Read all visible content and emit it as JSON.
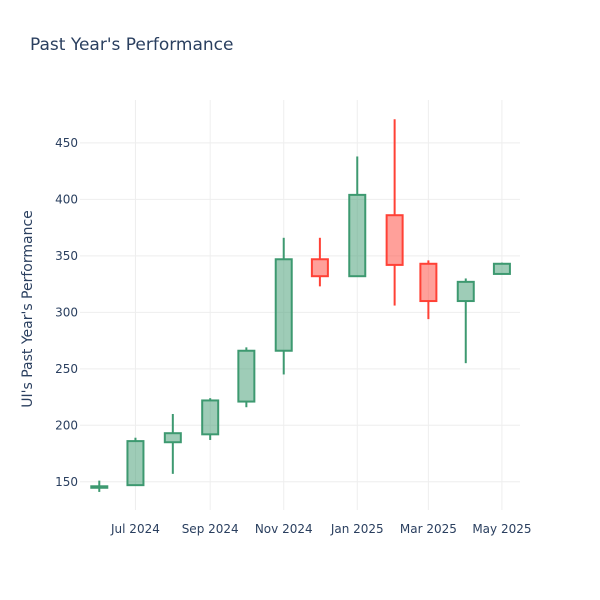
{
  "chart_data": {
    "type": "candlestick",
    "title": "Past Year's Performance",
    "ylabel": "UI's Past Year's Performance",
    "ylim": [
      125,
      488
    ],
    "yticks": [
      150,
      200,
      250,
      300,
      350,
      400,
      450
    ],
    "xlim": [
      "2024-05-16",
      "2025-05-16"
    ],
    "xticks": [
      {
        "date": "2024-07-01",
        "label": "Jul 2024"
      },
      {
        "date": "2024-09-01",
        "label": "Sep 2024"
      },
      {
        "date": "2024-11-01",
        "label": "Nov 2024"
      },
      {
        "date": "2025-01-01",
        "label": "Jan 2025"
      },
      {
        "date": "2025-03-01",
        "label": "Mar 2025"
      },
      {
        "date": "2025-05-01",
        "label": "May 2025"
      }
    ],
    "grid": true,
    "increasing_color": "#3d9970",
    "decreasing_color": "#ff4136",
    "candles": [
      {
        "date": "2024-06-01",
        "open": 145,
        "high": 151,
        "low": 141,
        "close": 146
      },
      {
        "date": "2024-07-01",
        "open": 147,
        "high": 189,
        "low": 147,
        "close": 186
      },
      {
        "date": "2024-08-01",
        "open": 185,
        "high": 210,
        "low": 157,
        "close": 193
      },
      {
        "date": "2024-09-01",
        "open": 192,
        "high": 224,
        "low": 187,
        "close": 222
      },
      {
        "date": "2024-10-01",
        "open": 221,
        "high": 269,
        "low": 216,
        "close": 266
      },
      {
        "date": "2024-11-01",
        "open": 266,
        "high": 366,
        "low": 245,
        "close": 347
      },
      {
        "date": "2024-12-01",
        "open": 347,
        "high": 366,
        "low": 323,
        "close": 332
      },
      {
        "date": "2025-01-01",
        "open": 332,
        "high": 438,
        "low": 332,
        "close": 404
      },
      {
        "date": "2025-02-01",
        "open": 386,
        "high": 471,
        "low": 306,
        "close": 342
      },
      {
        "date": "2025-03-01",
        "open": 343,
        "high": 346,
        "low": 294,
        "close": 310
      },
      {
        "date": "2025-04-01",
        "open": 310,
        "high": 330,
        "low": 255,
        "close": 327
      },
      {
        "date": "2025-05-01",
        "open": 334,
        "high": 344,
        "low": 334,
        "close": 343
      }
    ]
  }
}
